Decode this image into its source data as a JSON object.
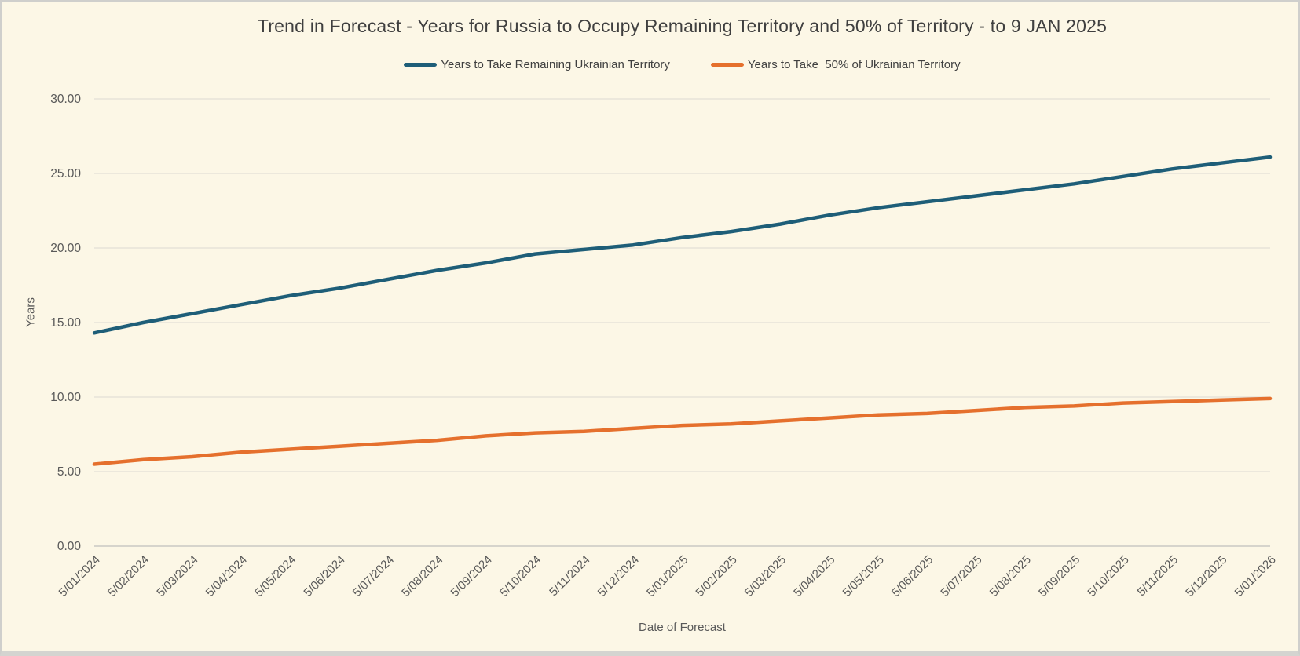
{
  "chart_data": {
    "type": "line",
    "title": "Trend in Forecast - Years for Russia to Occupy Remaining Territory and 50% of Territory - to 9 JAN 2025",
    "xlabel": "Date of Forecast",
    "ylabel": "Years",
    "ylim": [
      0,
      30
    ],
    "ytick_step": 5,
    "yticks": [
      "0.00",
      "5.00",
      "10.00",
      "15.00",
      "20.00",
      "25.00",
      "30.00"
    ],
    "grid": true,
    "legend_position": "top-center",
    "x_label_rotation_deg": 45,
    "categories": [
      "5/01/2024",
      "5/02/2024",
      "5/03/2024",
      "5/04/2024",
      "5/05/2024",
      "5/06/2024",
      "5/07/2024",
      "5/08/2024",
      "5/09/2024",
      "5/10/2024",
      "5/11/2024",
      "5/12/2024",
      "5/01/2025",
      "5/02/2025",
      "5/03/2025",
      "5/04/2025",
      "5/05/2025",
      "5/06/2025",
      "5/07/2025",
      "5/08/2025",
      "5/09/2025",
      "5/10/2025",
      "5/11/2025",
      "5/12/2025",
      "5/01/2026"
    ],
    "series": [
      {
        "name": "Years to Take Remaining Ukrainian Territory",
        "color": "#1E5E78",
        "values": [
          14.3,
          15.0,
          15.6,
          16.2,
          16.8,
          17.3,
          17.9,
          18.5,
          19.0,
          19.6,
          19.9,
          20.2,
          20.7,
          21.1,
          21.6,
          22.2,
          22.7,
          23.1,
          23.5,
          23.9,
          24.3,
          24.8,
          25.3,
          25.7,
          26.1
        ]
      },
      {
        "name": "Years to Take  50% of Ukrainian Territory",
        "color": "#E5702D",
        "values": [
          5.5,
          5.8,
          6.0,
          6.3,
          6.5,
          6.7,
          6.9,
          7.1,
          7.4,
          7.6,
          7.7,
          7.9,
          8.1,
          8.2,
          8.4,
          8.6,
          8.8,
          8.9,
          9.1,
          9.3,
          9.4,
          9.6,
          9.7,
          9.8,
          9.9
        ]
      }
    ]
  },
  "colors": {
    "background": "#FCF7E6",
    "grid": "#DBDAD2",
    "axis_line": "#C9C9C4",
    "axis_text": "#595959",
    "title_text": "#3F3F3F"
  }
}
